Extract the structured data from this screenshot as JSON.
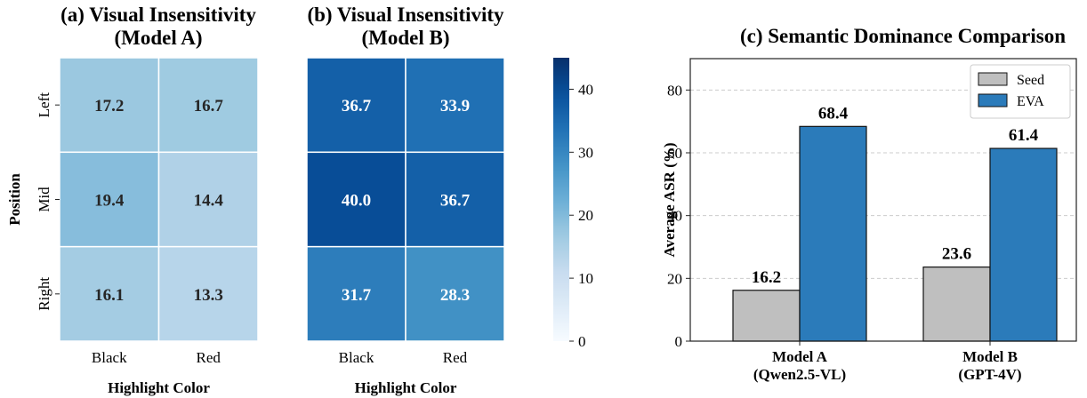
{
  "chart_data": [
    {
      "type": "heatmap",
      "title_lines": [
        "(a) Visual Insensitivity",
        "(Model A)"
      ],
      "xlabel": "Highlight Color",
      "ylabel": "Position",
      "x_categories": [
        "Black",
        "Red"
      ],
      "y_categories": [
        "Left",
        "Mid",
        "Right"
      ],
      "values": [
        [
          17.2,
          16.7
        ],
        [
          19.4,
          14.4
        ],
        [
          16.1,
          13.3
        ]
      ]
    },
    {
      "type": "heatmap",
      "title_lines": [
        "(b) Visual Insensitivity",
        "(Model B)"
      ],
      "xlabel": "Highlight Color",
      "x_categories": [
        "Black",
        "Red"
      ],
      "y_categories": [
        "Left",
        "Mid",
        "Right"
      ],
      "values": [
        [
          36.7,
          33.9
        ],
        [
          40.0,
          36.7
        ],
        [
          31.7,
          28.3
        ]
      ],
      "colorbar": {
        "range": [
          0,
          45
        ],
        "ticks": [
          "0",
          "10",
          "20",
          "30",
          "40"
        ]
      }
    },
    {
      "type": "bar",
      "title": "(c) Semantic Dominance Comparison",
      "ylabel": "Average ASR (%)",
      "ylim": [
        0,
        90
      ],
      "yticks": [
        "0",
        "20",
        "40",
        "60",
        "80"
      ],
      "grid": true,
      "legend_position": "top-right",
      "categories": [
        [
          "Model A",
          "(Qwen2.5-VL)"
        ],
        [
          "Model B",
          "(GPT-4V)"
        ]
      ],
      "series": [
        {
          "name": "Seed",
          "color": "#bfbfbf",
          "values": [
            16.2,
            23.6
          ],
          "labels": [
            "16.2",
            "23.6"
          ]
        },
        {
          "name": "EVA",
          "color": "#2b7bba",
          "values": [
            68.4,
            61.4
          ],
          "labels": [
            "68.4",
            "61.4"
          ]
        }
      ]
    }
  ]
}
